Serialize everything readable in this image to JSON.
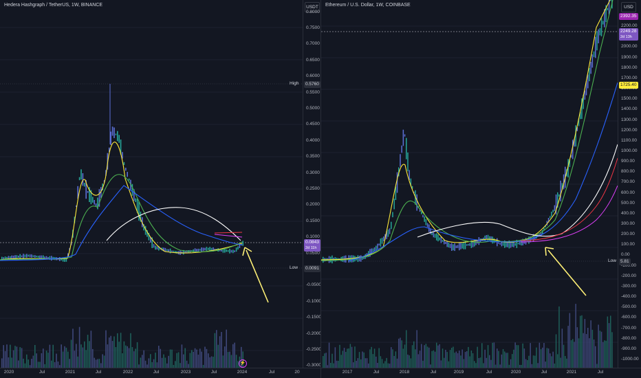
{
  "left_chart": {
    "title": "Hedera Hashgraph / TetherUS, 1W, BINANCE",
    "currency": "USDT",
    "price_ticks": [
      "0.8000",
      "0.7500",
      "0.7000",
      "0.6500",
      "0.6000",
      "0.5500",
      "0.5000",
      "0.4500",
      "0.4000",
      "0.3500",
      "0.3000",
      "0.2500",
      "0.2000",
      "0.1500",
      "0.1000",
      "0.0500",
      "0.0000",
      "-0.0500",
      "-0.1000",
      "-0.1500",
      "-0.2000",
      "-0.2500",
      "-0.3000"
    ],
    "time_ticks": [
      "2020",
      "Jul",
      "2021",
      "Jul",
      "2022",
      "Jul",
      "2023",
      "Jul",
      "2024",
      "Jul",
      "20"
    ],
    "high_label": "High",
    "high_value": "0.5760",
    "last_price": "0.0843",
    "countdown": "2d 11h",
    "low_label": "Low",
    "low_value": "0.0091",
    "event_icon": "lightning-icon",
    "colors": {
      "up": "#26a69a",
      "down": "#5b6fd6",
      "last_badge": "#7e57c2",
      "yellow_ma": "#ffeb3b",
      "green_ma": "#4caf50",
      "blue_ma": "#2962ff",
      "white_ma": "#ffffff",
      "red_ma": "#f23645",
      "arrow": "#fff176"
    }
  },
  "right_chart": {
    "title": "Ethereum / U.S. Dollar, 1W, COINBASE",
    "currency": "USD",
    "price_ticks": [
      "2300.00",
      "2200.00",
      "2100.00",
      "2000.00",
      "1900.00",
      "1800.00",
      "1700.00",
      "1600.00",
      "1500.00",
      "1400.00",
      "1300.00",
      "1200.00",
      "1100.00",
      "1000.00",
      "900.00",
      "800.00",
      "700.00",
      "600.00",
      "500.00",
      "400.00",
      "300.00",
      "200.00",
      "100.00",
      "0.00",
      "-100.00",
      "-200.00",
      "-300.00",
      "-400.00",
      "-500.00",
      "-600.00",
      "-700.00",
      "-800.00",
      "-900.00",
      "-1000.00"
    ],
    "time_ticks": [
      "2017",
      "Jul",
      "2018",
      "Jul",
      "2019",
      "Jul",
      "2020",
      "Jul",
      "2021",
      "Jul"
    ],
    "top_badge": "2392.35",
    "last_price": "2249.28",
    "countdown": "2d 13h",
    "yellow_badge": "1725.40",
    "low_label": "Low",
    "low_value": "5.81",
    "colors": {
      "up": "#26a69a",
      "down": "#5b6fd6",
      "top_badge": "#9c27b0",
      "last_badge": "#7e57c2",
      "yellow_badge": "#ffeb3b"
    }
  }
}
